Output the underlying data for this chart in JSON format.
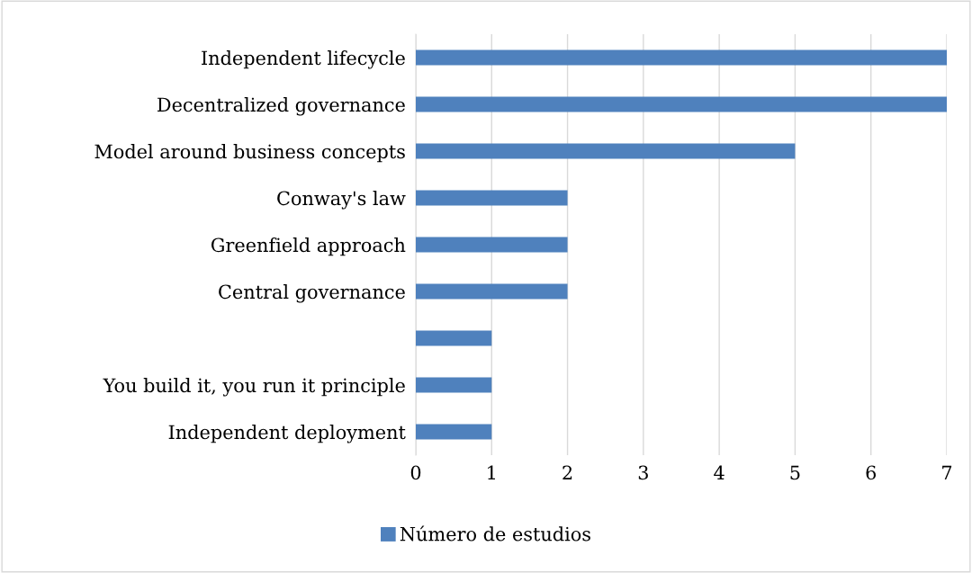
{
  "chart_data": {
    "type": "bar",
    "orientation": "horizontal",
    "categories": [
      "Independent lifecycle",
      "Decentralized governance",
      "Model around business concepts",
      "Conway's law",
      "Greenfield approach",
      "Central governance",
      null,
      "You build it, you run it principle",
      "Independent deployment"
    ],
    "series": [
      {
        "name": "Número de estudios",
        "color": "#4f81bd",
        "values": [
          7,
          7,
          5,
          2,
          2,
          2,
          1,
          1,
          1
        ]
      }
    ],
    "xlim": [
      0,
      7
    ],
    "xticks": [
      0,
      1,
      2,
      3,
      4,
      5,
      6,
      7
    ],
    "grid": "x",
    "legend": "bottom"
  }
}
